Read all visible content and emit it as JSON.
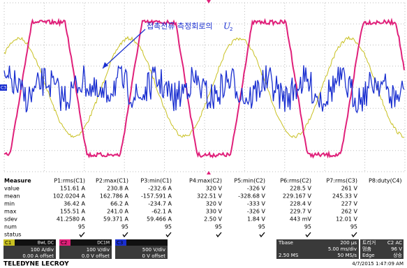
{
  "annotation": {
    "text": "접촉전류 측정회로의",
    "symbol": "U",
    "subscript": "2"
  },
  "trace_label": "C3",
  "measure": {
    "header": [
      "Measure",
      "P1:rms(C1)",
      "P2:max(C1)",
      "P3:min(C1)",
      "P4:max(C2)",
      "P5:min(C2)",
      "P6:rms(C2)",
      "P7:rms(C3)",
      "P8:duty(C4)"
    ],
    "rows": [
      {
        "label": "value",
        "cells": [
          "151.61 A",
          "230.8 A",
          "-232.6 A",
          "320 V",
          "-326 V",
          "228.5 V",
          "261 V"
        ]
      },
      {
        "label": "mean",
        "cells": [
          "102.0204 A",
          "162.786 A",
          "-157.591 A",
          "322.51 V",
          "-328.68 V",
          "229.167 V",
          "245.33 V"
        ]
      },
      {
        "label": "min",
        "cells": [
          "36.42 A",
          "66.2 A",
          "-234.7 A",
          "320 V",
          "-333 V",
          "228.4 V",
          "227 V"
        ]
      },
      {
        "label": "max",
        "cells": [
          "155.51 A",
          "241.0 A",
          "-62.1 A",
          "330 V",
          "-326 V",
          "229.7 V",
          "262 V"
        ]
      },
      {
        "label": "sdev",
        "cells": [
          "41.2580 A",
          "59.371 A",
          "59.466 A",
          "2.50 V",
          "1.84 V",
          "443 mV",
          "12.01 V"
        ]
      },
      {
        "label": "num",
        "cells": [
          "95",
          "95",
          "95",
          "95",
          "95",
          "95",
          "95"
        ]
      }
    ],
    "status_label": "status"
  },
  "channels": [
    {
      "name": "C1",
      "flags": "BwL DC",
      "scale": "100 A/div",
      "offset": "0.00 A offset"
    },
    {
      "name": "C2",
      "flags": "DC1M",
      "scale": "100 V/div",
      "offset": "0.0 V offset"
    },
    {
      "name": "C3",
      "scale": "500 V/div",
      "offset": "0 V offset"
    }
  ],
  "timebase": {
    "label": "Tbase",
    "delay": "200 µs",
    "per_div": "5.00 ms/div",
    "samples": "2.50 MS",
    "rate": "50 MS/s"
  },
  "trigger": {
    "label": "트리거",
    "source": "C2 AC",
    "mode": "멈춤",
    "level": "96 V",
    "type": "Edge",
    "slope": "상승"
  },
  "footer": {
    "brand": "TELEDYNE LECROY",
    "timestamp": "4/7/2015 1:47:09 AM"
  }
}
